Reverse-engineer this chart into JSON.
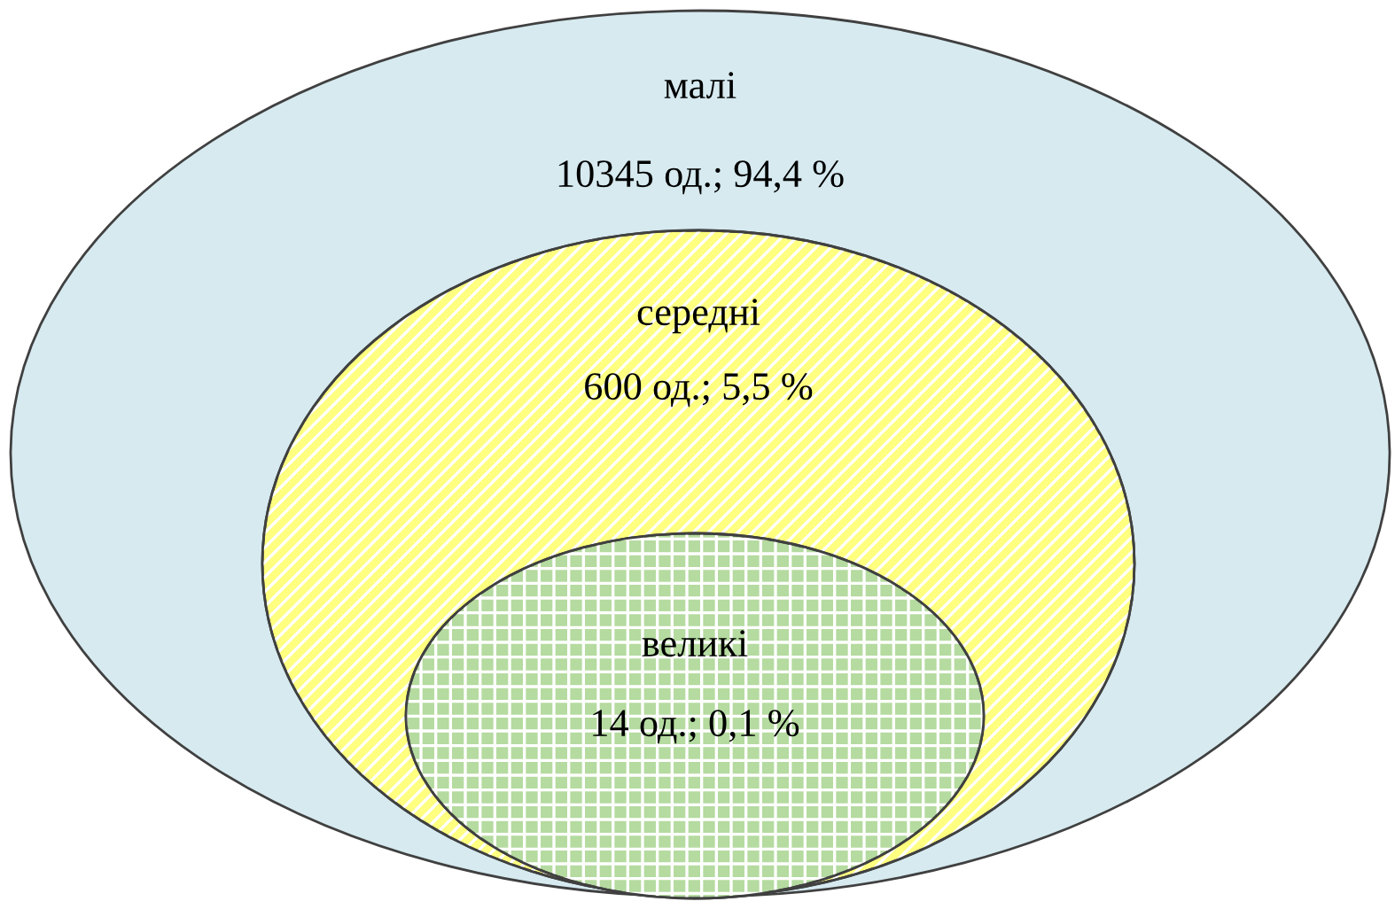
{
  "chart_data": {
    "type": "other",
    "categories": [
      "малі",
      "середні",
      "великі"
    ],
    "values": [
      10345,
      600,
      14
    ],
    "value_labels": [
      "10345 од.; 94,4 %",
      "600 од.; 5,5 %",
      "14 од.; 0,1 %"
    ],
    "colors": [
      "#d6eaf0",
      "#ffff80",
      "#b5dba0"
    ]
  }
}
